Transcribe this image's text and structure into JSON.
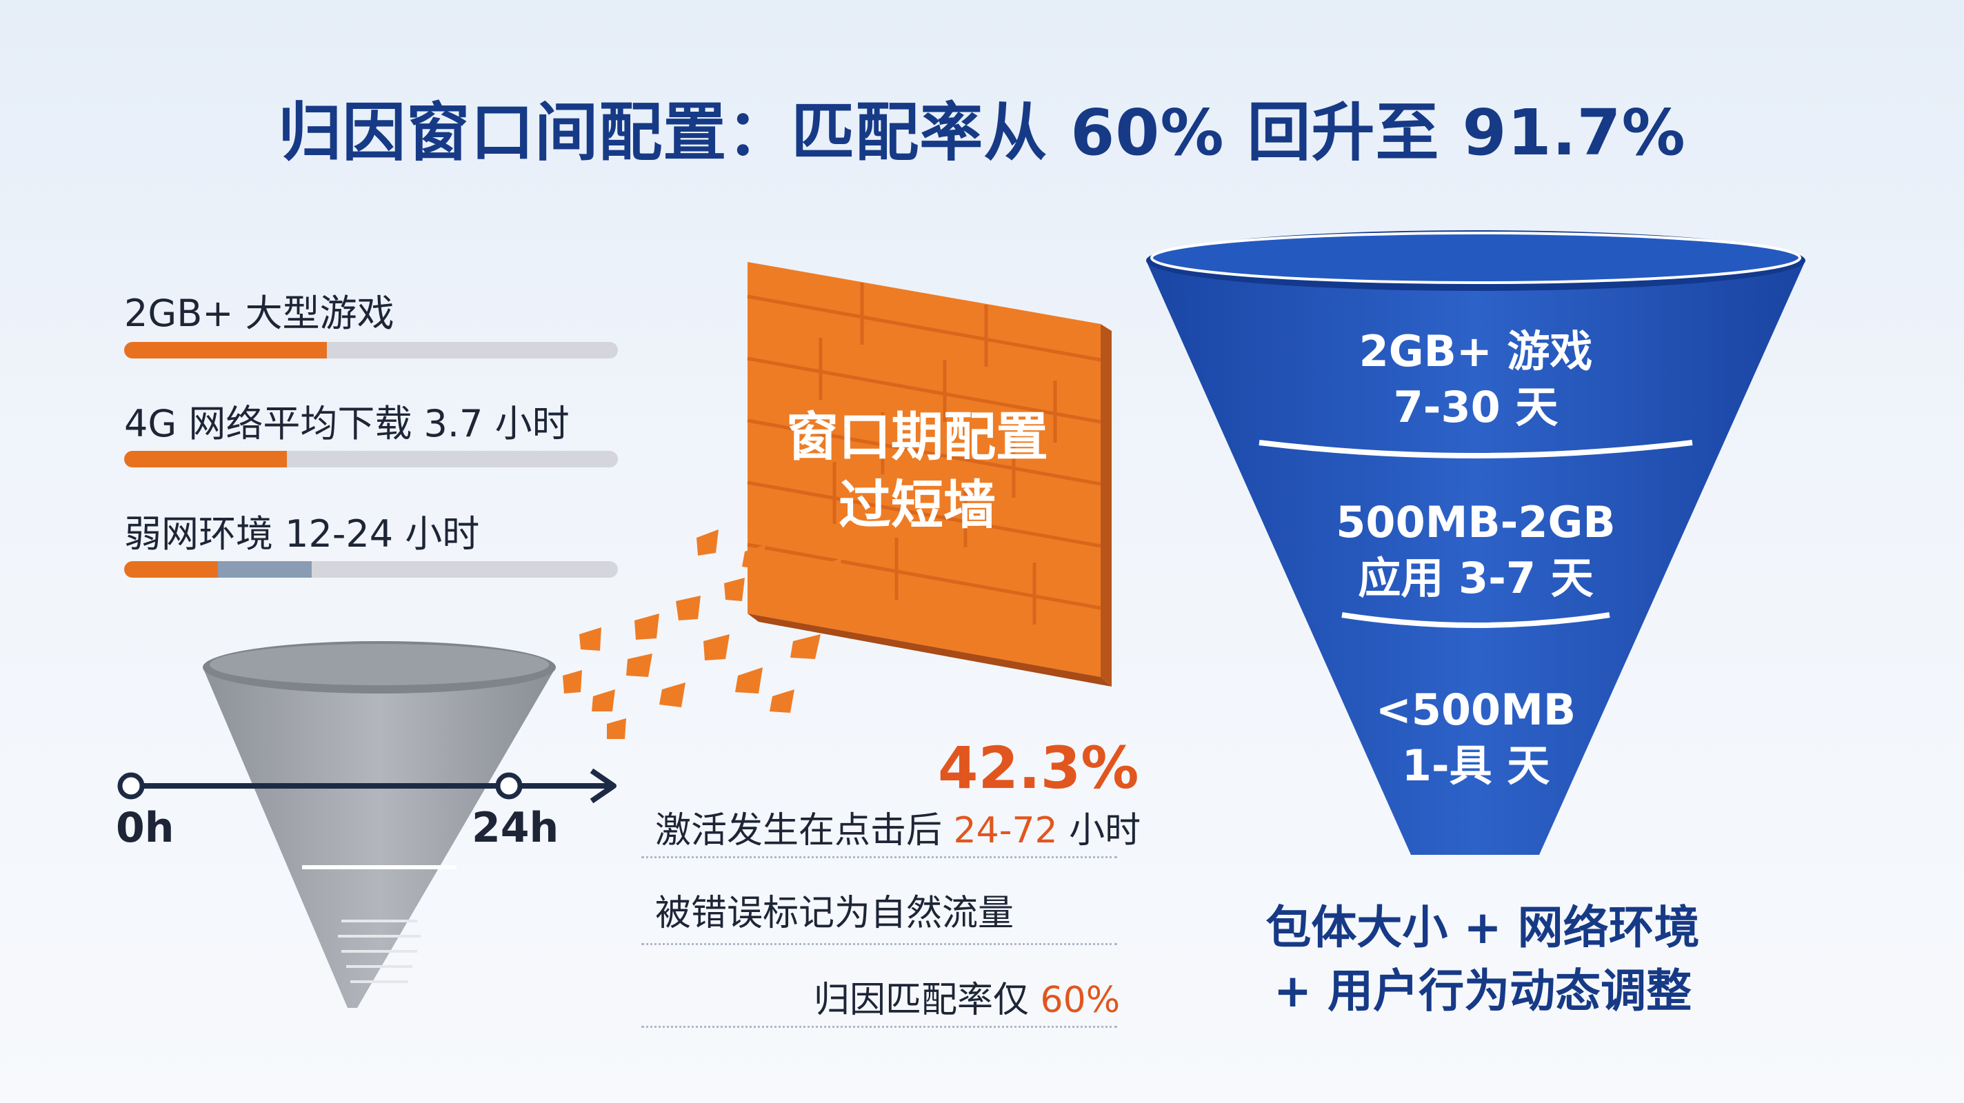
{
  "title": "归因窗口间配置：匹配率从 60% 回升至 91.7%",
  "bars": [
    {
      "label": "2GB+ 大型游戏",
      "fill": 0.41
    },
    {
      "label": "4G 网络平均下载 3.7 小时",
      "fill": 0.33
    },
    {
      "label": "弱网环境 12-24 小时",
      "fill": 0.19,
      "secondary_fill": 0.19
    }
  ],
  "wall": {
    "line1": "窗口期配置",
    "line2": "过短墙"
  },
  "timeline": {
    "start_label": "0h",
    "end_label": "24h"
  },
  "stats": {
    "percent": "42.3%",
    "line1_prefix": "激活发生在点击后 ",
    "line1_highlight": "24-72",
    "line1_suffix": " 小时",
    "line2": "被错误标记为自然流量",
    "line3_prefix": "归因匹配率仅 ",
    "line3_highlight": "60%"
  },
  "funnel_right": {
    "tier1_line1": "2GB+ 游戏",
    "tier1_line2": "7-30 天",
    "tier2_line1": "500MB-2GB",
    "tier2_line2": "应用 3-7 天",
    "tier3_line1": "<500MB",
    "tier3_line2": "1-具 天"
  },
  "bottom": {
    "line1": "包体大小 + 网络环境",
    "line2": "+ 用户行为动态调整"
  },
  "colors": {
    "title": "#173a86",
    "accent_orange": "#e8711f",
    "funnel_blue": "#1f4fb0",
    "funnel_gray": "#9a9ea6"
  }
}
